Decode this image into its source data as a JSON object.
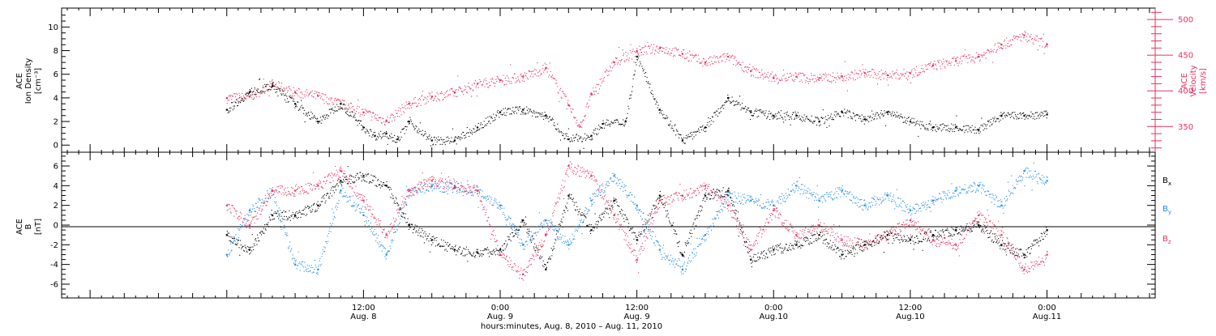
{
  "chart_data": [
    {
      "type": "scatter",
      "panel": "top",
      "ylabel_left": [
        "ACE",
        "Ion Density",
        "[cm⁻³]"
      ],
      "ylabel_right": [
        "ACE",
        "Velocity",
        "[km/s]"
      ],
      "ylim_left": [
        -0.6,
        11.6
      ],
      "ylim_right": [
        314,
        516
      ],
      "yticks_left": [
        "0",
        "2",
        "4",
        "6",
        "8",
        "10"
      ],
      "yticks_right": [
        "350",
        "400",
        "450",
        "500"
      ],
      "grid": false,
      "series": [
        {
          "name": "Ion Density",
          "axis": "left",
          "color": "#000000",
          "x": [
            0,
            2,
            4,
            6,
            8,
            10,
            12,
            13,
            14,
            15,
            16,
            18,
            20,
            22,
            24,
            26,
            28,
            30,
            32,
            33,
            35,
            36,
            38,
            40,
            42,
            44,
            46,
            48,
            50,
            52,
            54,
            56,
            58,
            60,
            62,
            64,
            66,
            68,
            70,
            72
          ],
          "values": [
            3.0,
            4.5,
            5.0,
            3.5,
            2.0,
            3.5,
            1.5,
            0.8,
            1.0,
            0.5,
            2.0,
            0.4,
            0.4,
            1.5,
            2.8,
            3.0,
            2.5,
            0.5,
            0.8,
            1.8,
            2.0,
            7.5,
            3.0,
            0.4,
            1.5,
            4.0,
            2.8,
            2.5,
            2.5,
            2.0,
            2.8,
            2.2,
            2.8,
            2.0,
            1.5,
            1.5,
            1.3,
            2.5,
            2.5,
            2.6
          ]
        },
        {
          "name": "Velocity",
          "axis": "right",
          "color": "#e8305e",
          "x": [
            0,
            2,
            4,
            6,
            8,
            10,
            12,
            14,
            16,
            18,
            20,
            22,
            24,
            26,
            28,
            30,
            31,
            32,
            34,
            36,
            38,
            40,
            42,
            44,
            46,
            48,
            50,
            52,
            54,
            56,
            58,
            60,
            62,
            64,
            66,
            68,
            70,
            72
          ],
          "values": [
            390,
            392,
            410,
            398,
            393,
            382,
            370,
            358,
            382,
            392,
            398,
            410,
            415,
            420,
            432,
            380,
            350,
            395,
            440,
            456,
            460,
            452,
            440,
            448,
            428,
            418,
            420,
            418,
            420,
            425,
            422,
            425,
            436,
            442,
            448,
            465,
            478,
            465
          ]
        }
      ]
    },
    {
      "type": "scatter",
      "panel": "bottom",
      "ylabel_left": [
        "ACE",
        "B",
        "[nT]"
      ],
      "ylim": [
        -7.4,
        7.4
      ],
      "yticks": [
        "-6",
        "-4",
        "-2",
        "0",
        "2",
        "4",
        "6"
      ],
      "zero_line": true,
      "grid": false,
      "xticks": [
        {
          "hour": 12,
          "time": "12:00",
          "date": "Aug. 8"
        },
        {
          "hour": 24,
          "time": "0:00",
          "date": "Aug. 9"
        },
        {
          "hour": 36,
          "time": "12:00",
          "date": "Aug. 9"
        },
        {
          "hour": 48,
          "time": "0:00",
          "date": "Aug.10"
        },
        {
          "hour": 60,
          "time": "12:00",
          "date": "Aug.10"
        },
        {
          "hour": 72,
          "time": "0:00",
          "date": "Aug.11"
        }
      ],
      "xlabel": "hours:minutes, Aug. 8, 2010 – Aug. 11, 2010",
      "series": [
        {
          "name": "B",
          "subscript": "x",
          "color": "#000000",
          "x": [
            0,
            2,
            4,
            6,
            8,
            10,
            12,
            14,
            16,
            18,
            20,
            22,
            24,
            26,
            28,
            30,
            32,
            34,
            36,
            38,
            40,
            42,
            44,
            46,
            48,
            50,
            52,
            54,
            56,
            58,
            60,
            62,
            64,
            66,
            68,
            70,
            72
          ],
          "values": [
            -1.0,
            -2.5,
            1.0,
            1.0,
            2.0,
            4.5,
            5.0,
            4.0,
            0.0,
            -1.5,
            -2.5,
            -2.8,
            -2.5,
            0.5,
            -4.5,
            3.0,
            -0.5,
            2.5,
            -1.5,
            3.0,
            -3.0,
            3.0,
            3.5,
            -3.5,
            -2.5,
            -2.0,
            -1.0,
            -3.0,
            -2.0,
            -1.0,
            -1.5,
            -1.0,
            -0.5,
            0.0,
            -2.0,
            -3.0,
            -0.5
          ]
        },
        {
          "name": "B",
          "subscript": "y",
          "color": "#1e8ae6",
          "x": [
            0,
            2,
            4,
            6,
            8,
            10,
            12,
            14,
            16,
            18,
            20,
            22,
            24,
            26,
            28,
            30,
            32,
            34,
            36,
            38,
            40,
            42,
            44,
            46,
            48,
            50,
            52,
            54,
            56,
            58,
            60,
            62,
            64,
            66,
            68,
            70,
            72
          ],
          "values": [
            -3.0,
            1.5,
            3.5,
            -4.0,
            -4.5,
            3.5,
            1.0,
            -3.0,
            3.5,
            4.0,
            3.8,
            3.5,
            2.0,
            -2.0,
            0.5,
            -2.0,
            2.5,
            5.0,
            2.0,
            -2.5,
            -4.5,
            -1.0,
            3.0,
            2.5,
            2.0,
            4.0,
            2.5,
            3.5,
            2.0,
            3.0,
            1.5,
            2.5,
            3.5,
            4.0,
            2.0,
            5.5,
            4.5
          ]
        },
        {
          "name": "B",
          "subscript": "z",
          "color": "#e8305e",
          "x": [
            0,
            2,
            4,
            6,
            8,
            10,
            12,
            14,
            16,
            18,
            20,
            22,
            24,
            26,
            28,
            30,
            32,
            34,
            36,
            38,
            40,
            42,
            44,
            46,
            48,
            50,
            52,
            54,
            56,
            58,
            60,
            62,
            64,
            66,
            68,
            70,
            72
          ],
          "values": [
            2.0,
            0.0,
            3.5,
            3.5,
            4.0,
            5.5,
            2.5,
            -1.0,
            3.5,
            4.5,
            4.0,
            3.5,
            -3.0,
            -5.0,
            -1.0,
            6.0,
            5.0,
            1.0,
            -3.5,
            2.5,
            3.0,
            4.0,
            2.0,
            -2.5,
            1.5,
            -1.0,
            0.0,
            -1.5,
            -2.0,
            -1.0,
            0.5,
            -1.5,
            -2.0,
            1.0,
            -1.0,
            -4.5,
            -3.0
          ]
        }
      ]
    }
  ]
}
